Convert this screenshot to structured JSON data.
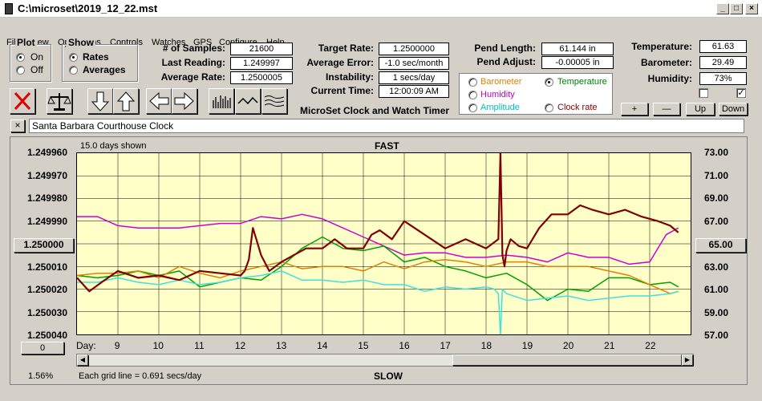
{
  "window": {
    "title": "C:\\microset\\2019_12_22.mst"
  },
  "menu": [
    "File",
    "View",
    "Operations",
    "Controls",
    "Watches",
    "GPS",
    "Configure",
    "Help"
  ],
  "plot_group": {
    "label": "Plot",
    "on": "On",
    "off": "Off",
    "selected": "On"
  },
  "show_group": {
    "label": "Show",
    "rates": "Rates",
    "averages": "Averages",
    "selected": "Rates"
  },
  "stats1": [
    {
      "label": "# of Samples:",
      "value": "21600"
    },
    {
      "label": "Last Reading:",
      "value": "1.249997"
    },
    {
      "label": "Average Rate:",
      "value": "1.2500005"
    }
  ],
  "stats2": [
    {
      "label": "Target Rate:",
      "value": "1.2500000"
    },
    {
      "label": "Average Error:",
      "value": "-1.0 sec/month"
    },
    {
      "label": "Instability:",
      "value": "1 secs/day"
    },
    {
      "label": "Current Time:",
      "value": "12:00:09 AM"
    }
  ],
  "stats3": [
    {
      "label": "Pend Length:",
      "value": "61.144 in"
    },
    {
      "label": "Pend Adjust:",
      "value": "-0.00005 in"
    }
  ],
  "stats4": [
    {
      "label": "Temperature:",
      "value": "61.63"
    },
    {
      "label": "Barometer:",
      "value": "29.49"
    },
    {
      "label": "Humidity:",
      "value": "73%"
    }
  ],
  "sensor_radios": [
    {
      "label": "Barometer",
      "color": "#e08000",
      "selected": false
    },
    {
      "label": "Temperature",
      "color": "#008000",
      "selected": true
    },
    {
      "label": "Humidity",
      "color": "#c000c0",
      "selected": false
    },
    {
      "label": "Amplitude",
      "color": "#00c0c0",
      "selected": false
    },
    {
      "label": "Clock rate",
      "color": "#800000",
      "selected": false
    }
  ],
  "app_caption": "MicroSet Clock and Watch Timer",
  "adjust_buttons": {
    "plus": "+",
    "minus": "—",
    "up": "Up",
    "down": "Down"
  },
  "checkboxes": [
    {
      "checked": false
    },
    {
      "checked": true
    }
  ],
  "clock_name": "Santa Barbara Courthouse Clock",
  "close_x": "×",
  "chart_data": {
    "type": "line",
    "top_label": "FAST",
    "bottom_label": "SLOW",
    "days_shown": "15.0 days shown",
    "grid_note": "Each grid line = 0.691 secs/day",
    "percent": "1.56%",
    "left_axis_ticks": [
      "1.249960",
      "1.249970",
      "1.249980",
      "1.249990",
      "1.250000",
      "1.250010",
      "1.250020",
      "1.250030",
      "1.250040"
    ],
    "left_center_button": "1.250000",
    "right_axis_ticks": [
      "73.00",
      "71.00",
      "69.00",
      "67.00",
      "65.00",
      "63.00",
      "61.00",
      "59.00",
      "57.00"
    ],
    "right_center_button": "65.00",
    "x_label": "Day:",
    "x_ticks": [
      "9",
      "10",
      "11",
      "12",
      "13",
      "14",
      "15",
      "16",
      "17",
      "18",
      "19",
      "20",
      "21",
      "22"
    ],
    "bottom_left_button": "0",
    "xlim": [
      8,
      23
    ],
    "ylim_left": [
      1.24996,
      1.25004
    ],
    "ylim_right": [
      57,
      73
    ],
    "series": [
      {
        "name": "Clock rate",
        "color": "#800000",
        "width": 2.2,
        "x": [
          8,
          8.3,
          8.6,
          9,
          9.5,
          10,
          10.5,
          11,
          11.5,
          12,
          12.1,
          12.2,
          12.3,
          12.5,
          12.7,
          13,
          13.3,
          13.6,
          14,
          14.3,
          14.6,
          15,
          15.2,
          15.4,
          15.7,
          16,
          16.5,
          17,
          17.5,
          18,
          18.3,
          18.35,
          18.4,
          18.45,
          18.5,
          18.6,
          18.8,
          19,
          19.3,
          19.6,
          20,
          20.3,
          20.6,
          21,
          21.4,
          21.8,
          22.2,
          22.5,
          22.7
        ],
        "y": [
          1.250015,
          1.250021,
          1.250017,
          1.250012,
          1.250015,
          1.250014,
          1.250016,
          1.250012,
          1.250013,
          1.250014,
          1.250012,
          1.250007,
          1.249993,
          1.250005,
          1.250012,
          1.250008,
          1.250005,
          1.250002,
          1.250002,
          1.249998,
          1.250002,
          1.250002,
          1.249996,
          1.249994,
          1.249998,
          1.24999,
          1.249996,
          1.250002,
          1.249998,
          1.250002,
          1.249998,
          1.24996,
          1.250005,
          1.25001,
          1.250003,
          1.249998,
          1.250001,
          1.250002,
          1.249993,
          1.249987,
          1.249987,
          1.249983,
          1.249985,
          1.249987,
          1.249985,
          1.249988,
          1.24999,
          1.249992,
          1.249995
        ]
      },
      {
        "name": "Humidity",
        "color": "#d000d0",
        "width": 1.5,
        "x": [
          8,
          8.5,
          9,
          9.5,
          10,
          10.5,
          11,
          11.5,
          12,
          12.5,
          13,
          13.5,
          14,
          14.5,
          15,
          15.5,
          16,
          16.5,
          17,
          17.5,
          18,
          18.5,
          19,
          19.5,
          20,
          20.5,
          21,
          21.5,
          22,
          22.4,
          22.7
        ],
        "y": [
          1.249988,
          1.249988,
          1.249992,
          1.249993,
          1.249993,
          1.249993,
          1.249992,
          1.249991,
          1.249991,
          1.249988,
          1.249989,
          1.249987,
          1.249989,
          1.249993,
          1.249997,
          1.250001,
          1.250005,
          1.250004,
          1.250004,
          1.250006,
          1.250006,
          1.250005,
          1.250006,
          1.250008,
          1.250004,
          1.250006,
          1.250006,
          1.250009,
          1.250008,
          1.249996,
          1.249993
        ]
      },
      {
        "name": "Temperature",
        "color": "#00a000",
        "width": 1.5,
        "x": [
          8,
          8.5,
          9,
          9.5,
          10,
          10.5,
          11,
          11.5,
          12,
          12.5,
          13,
          13.5,
          14,
          14.5,
          15,
          15.5,
          16,
          16.5,
          17,
          17.5,
          18,
          18.5,
          19,
          19.5,
          20,
          20.5,
          21,
          21.5,
          22,
          22.5,
          22.7
        ],
        "y": [
          1.250014,
          1.250015,
          1.250014,
          1.250012,
          1.250014,
          1.250012,
          1.250019,
          1.250017,
          1.250015,
          1.250016,
          1.25001,
          1.250002,
          1.249997,
          1.250002,
          1.250003,
          1.250001,
          1.250008,
          1.250006,
          1.25001,
          1.250012,
          1.250015,
          1.250013,
          1.250018,
          1.250025,
          1.25002,
          1.250021,
          1.250015,
          1.250015,
          1.250018,
          1.250017,
          1.250019
        ]
      },
      {
        "name": "Barometer",
        "color": "#e08000",
        "width": 1.5,
        "x": [
          8,
          8.5,
          9,
          9.5,
          10,
          10.5,
          11,
          11.5,
          12,
          12.5,
          13,
          13.5,
          14,
          14.5,
          15,
          15.5,
          16,
          16.5,
          17,
          17.5,
          18,
          18.5,
          19,
          19.5,
          20,
          20.5,
          21,
          21.5,
          22,
          22.5,
          22.7
        ],
        "y": [
          1.250014,
          1.250013,
          1.250013,
          1.250012,
          1.250015,
          1.25001,
          1.250013,
          1.250015,
          1.250012,
          1.25001,
          1.250008,
          1.250011,
          1.25001,
          1.25001,
          1.250012,
          1.250008,
          1.250011,
          1.250008,
          1.250007,
          1.250008,
          1.25001,
          1.250008,
          1.250008,
          1.25001,
          1.25001,
          1.25001,
          1.250012,
          1.250014,
          1.250018,
          1.250022,
          1.250021
        ]
      },
      {
        "name": "Amplitude",
        "color": "#40e0e0",
        "width": 1.5,
        "x": [
          8,
          8.5,
          9,
          9.5,
          10,
          10.5,
          11,
          11.5,
          12,
          12.5,
          13,
          13.5,
          14,
          14.5,
          15,
          15.5,
          16,
          16.5,
          17,
          17.5,
          18,
          18.2,
          18.3,
          18.35,
          18.4,
          18.5,
          19,
          19.5,
          20,
          20.5,
          21,
          21.5,
          22,
          22.5,
          22.7
        ],
        "y": [
          1.250017,
          1.250017,
          1.250015,
          1.250017,
          1.250018,
          1.250016,
          1.250018,
          1.250017,
          1.250015,
          1.250014,
          1.250012,
          1.250016,
          1.250016,
          1.250017,
          1.250016,
          1.250018,
          1.250018,
          1.250021,
          1.250019,
          1.25002,
          1.250019,
          1.25002,
          1.250022,
          1.25004,
          1.25002,
          1.250022,
          1.250025,
          1.250024,
          1.250023,
          1.250025,
          1.250024,
          1.250023,
          1.250023,
          1.250022,
          1.250021
        ]
      }
    ]
  }
}
